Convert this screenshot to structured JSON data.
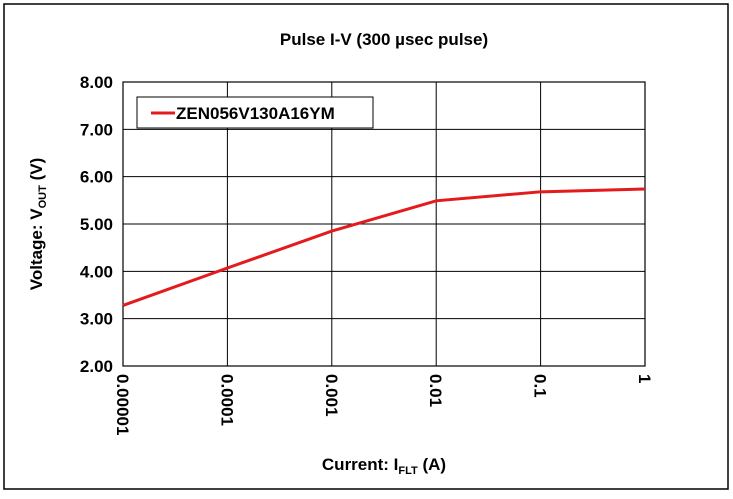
{
  "chart_data": {
    "type": "line",
    "title": "Pulse I-V (300 µsec pulse)",
    "ylabel_parts": [
      "Voltage: V",
      "OUT",
      " (V)"
    ],
    "xlabel_parts": [
      "Current: I",
      "FLT",
      " (A)"
    ],
    "xscale": "log",
    "xlim": [
      1e-05,
      1
    ],
    "xticks": [
      1e-05,
      0.0001,
      0.001,
      0.01,
      0.1,
      1
    ],
    "ylim": [
      2,
      8
    ],
    "yticks": [
      {
        "value": 2,
        "label": "2.00"
      },
      {
        "value": 3,
        "label": "3.00"
      },
      {
        "value": 4,
        "label": "4.00"
      },
      {
        "value": 5,
        "label": "5.00"
      },
      {
        "value": 6,
        "label": "6.00"
      },
      {
        "value": 7,
        "label": "7.00"
      },
      {
        "value": 8,
        "label": "8.00"
      }
    ],
    "grid": true,
    "legend": "upper left",
    "series": [
      {
        "name": "ZEN056V130A16YM",
        "color": "#e41a1c",
        "x": [
          1e-05,
          0.0001,
          0.001,
          0.01,
          0.1,
          1
        ],
        "values": [
          3.28,
          4.07,
          4.85,
          5.49,
          5.68,
          5.74
        ]
      }
    ]
  }
}
